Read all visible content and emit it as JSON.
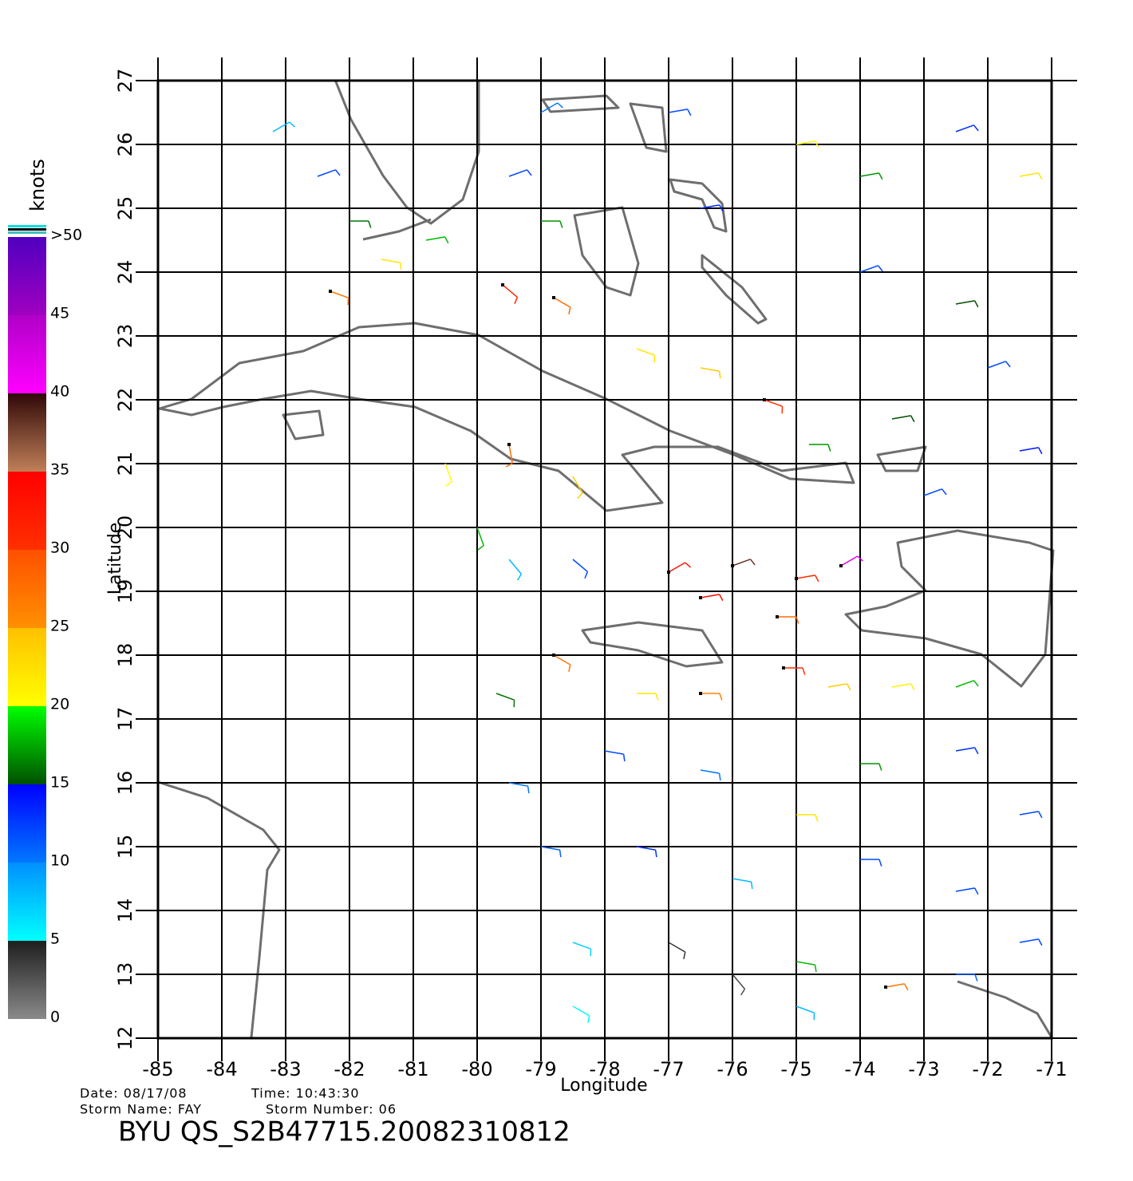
{
  "map": {
    "type": "wind-barbs",
    "xlabel": "Longitude",
    "ylabel": "Latitude",
    "xlim": [
      -85,
      -71
    ],
    "ylim": [
      12,
      27
    ],
    "xticks": [
      -85,
      -84,
      -83,
      -82,
      -81,
      -80,
      -79,
      -78,
      -77,
      -76,
      -75,
      -74,
      -73,
      -72,
      -71
    ],
    "yticks": [
      12,
      13,
      14,
      15,
      16,
      17,
      18,
      19,
      20,
      21,
      22,
      23,
      24,
      25,
      26,
      27
    ],
    "grid": true,
    "colorbar": {
      "title": "knots",
      "lim": [
        0,
        50
      ],
      "ticks": [
        0,
        5,
        10,
        15,
        20,
        25,
        30,
        35,
        40,
        45,
        {
          "value": 50,
          "label": ">50"
        }
      ],
      "colors": [
        [
          "#8a8a8a",
          "#1e1e1e"
        ],
        [
          "#00ffff",
          "#0090ff"
        ],
        [
          "#0078ff",
          "#0000ff"
        ],
        [
          "#005000",
          "#00ff00"
        ],
        [
          "#ffff00",
          "#ffc000"
        ],
        [
          "#ff9000",
          "#ff5000"
        ],
        [
          "#ff3000",
          "#ff0000"
        ],
        [
          "#c08058",
          "#300808"
        ],
        [
          "#ff00ff",
          "#b000c8"
        ],
        [
          "#a000c0",
          "#5000c0"
        ]
      ]
    },
    "samples": [
      [
        -83.2,
        26.2,
        8,
        60
      ],
      [
        -82.5,
        25.5,
        12,
        70
      ],
      [
        -82,
        24.8,
        16,
        90
      ],
      [
        -81.5,
        24.2,
        22,
        100
      ],
      [
        -82.3,
        23.7,
        27,
        110
      ],
      [
        -80.8,
        24.5,
        18,
        80
      ],
      [
        -79.5,
        25.5,
        12,
        70
      ],
      [
        -79,
        24.8,
        17,
        90
      ],
      [
        -78.8,
        23.6,
        28,
        120
      ],
      [
        -79.6,
        23.8,
        31,
        130
      ],
      [
        -77.5,
        22.8,
        22,
        110
      ],
      [
        -76.5,
        22.5,
        24,
        100
      ],
      [
        -75.5,
        22,
        30,
        110
      ],
      [
        -74.8,
        21.3,
        17,
        90
      ],
      [
        -73.5,
        21.7,
        15,
        80
      ],
      [
        -77,
        26.5,
        12,
        80
      ],
      [
        -75,
        26,
        20,
        80
      ],
      [
        -74,
        25.5,
        17,
        80
      ],
      [
        -72.5,
        26.2,
        13,
        70
      ],
      [
        -71.5,
        25.5,
        22,
        80
      ],
      [
        -74,
        24,
        12,
        70
      ],
      [
        -72.5,
        23.5,
        15,
        80
      ],
      [
        -72,
        22.5,
        12,
        70
      ],
      [
        -71.5,
        21.2,
        14,
        80
      ],
      [
        -73,
        20.5,
        12,
        70
      ],
      [
        -76.5,
        25,
        13,
        80
      ],
      [
        -79,
        26.5,
        10,
        60
      ],
      [
        -80.5,
        21,
        20,
        160
      ],
      [
        -79.5,
        21.3,
        28,
        170
      ],
      [
        -78.5,
        20.8,
        24,
        150
      ],
      [
        -80,
        20,
        18,
        160
      ],
      [
        -79.5,
        19.5,
        8,
        140
      ],
      [
        -78.5,
        19.5,
        12,
        130
      ],
      [
        -77,
        19.3,
        33,
        60
      ],
      [
        -76,
        19.4,
        38,
        70
      ],
      [
        -75,
        19.2,
        31,
        80
      ],
      [
        -74.3,
        19.4,
        42,
        60
      ],
      [
        -76.5,
        18.9,
        34,
        80
      ],
      [
        -75.3,
        18.6,
        28,
        90
      ],
      [
        -78.8,
        18,
        27,
        120
      ],
      [
        -79.7,
        17.4,
        16,
        110
      ],
      [
        -77.5,
        17.4,
        22,
        90
      ],
      [
        -76.5,
        17.4,
        26,
        90
      ],
      [
        -75.2,
        17.8,
        30,
        90
      ],
      [
        -74.5,
        17.5,
        24,
        80
      ],
      [
        -73.5,
        17.5,
        21,
        80
      ],
      [
        -72.5,
        17.5,
        18,
        70
      ],
      [
        -79.5,
        16,
        10,
        100
      ],
      [
        -78,
        16.5,
        12,
        100
      ],
      [
        -76.5,
        16.2,
        10,
        100
      ],
      [
        -75,
        15.5,
        22,
        90
      ],
      [
        -74,
        16.3,
        17,
        90
      ],
      [
        -72.5,
        16.5,
        13,
        80
      ],
      [
        -71.5,
        15.5,
        12,
        80
      ],
      [
        -79,
        15,
        11,
        100
      ],
      [
        -77.5,
        15,
        13,
        100
      ],
      [
        -76,
        14.5,
        8,
        100
      ],
      [
        -74,
        14.8,
        12,
        90
      ],
      [
        -72.5,
        14.3,
        12,
        80
      ],
      [
        -78.5,
        13.5,
        7,
        110
      ],
      [
        -77,
        13.5,
        4,
        120
      ],
      [
        -76,
        13,
        3,
        140
      ],
      [
        -75,
        13.2,
        18,
        100
      ],
      [
        -73.6,
        12.8,
        27,
        80
      ],
      [
        -72.5,
        13,
        11,
        90
      ],
      [
        -78.5,
        12.5,
        5,
        120
      ],
      [
        -75,
        12.5,
        8,
        110
      ],
      [
        -71.5,
        13.5,
        12,
        80
      ]
    ]
  },
  "footer": {
    "date": "Date: 08/17/08",
    "time": "Time: 10:43:30",
    "storm_name": "Storm Name: FAY",
    "storm_number": "Storm Number: 06",
    "title": "BYU QS_S2B47715.20082310812"
  }
}
